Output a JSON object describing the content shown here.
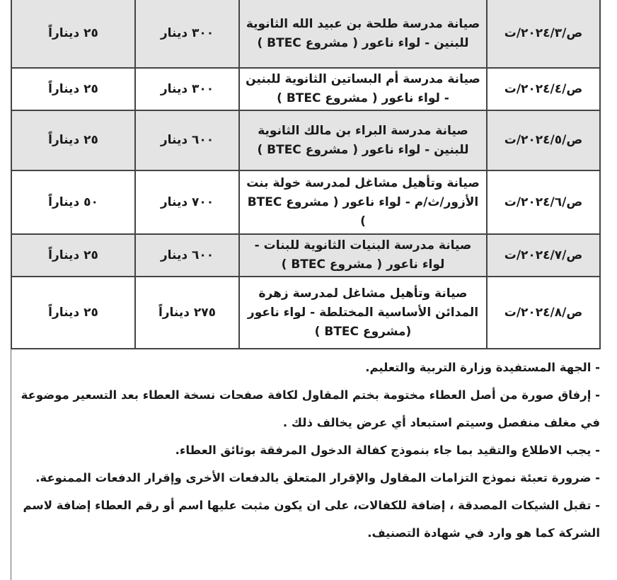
{
  "table": {
    "rows": [
      {
        "number": "ت/٢٠٢٤/٣/ص",
        "description": "صيانة مدرسة طلحة بن عبيد الله الثانوية للبنين - لواء ناعور ( مشروع BTEC )",
        "price": "٣٠٠ دينار",
        "fee": "٢٥ ديناراً",
        "shaded": true
      },
      {
        "number": "ت/٢٠٢٤/٤/ص",
        "description": "صيانة مدرسة أم البساتين الثانوية للبنين - لواء ناعور ( مشروع BTEC )",
        "price": "٣٠٠ دينار",
        "fee": "٢٥ ديناراً",
        "shaded": false
      },
      {
        "number": "ت/٢٠٢٤/٥/ص",
        "description": "صيانة مدرسة البراء بن مالك الثانوية للبنين - لواء ناعور ( مشروع BTEC )",
        "price": "٦٠٠ دينار",
        "fee": "٢٥ ديناراً",
        "shaded": true
      },
      {
        "number": "ت/٢٠٢٤/٦/ص",
        "description": "صيانة وتأهيل مشاغل لمدرسة خولة بنت الأزور/ث/م - لواء ناعور ( مشروع BTEC )",
        "price": "٧٠٠ دينار",
        "fee": "٥٠ ديناراً",
        "shaded": false
      },
      {
        "number": "ت/٢٠٢٤/٧/ص",
        "description": "صيانة مدرسة البنيات الثانوية للبنات - لواء ناعور ( مشروع BTEC )",
        "price": "٦٠٠ دينار",
        "fee": "٢٥ ديناراً",
        "shaded": true
      },
      {
        "number": "ت/٢٠٢٤/٨/ص",
        "description": "صيانة وتأهيل مشاغل لمدرسة زهرة المدائن الأساسية المختلطة - لواء ناعور (مشروع BTEC )",
        "price": "٢٧٥ ديناراً",
        "fee": "٢٥ ديناراً",
        "shaded": false
      }
    ]
  },
  "notes": [
    "- الجهة المستفيدة وزارة التربية والتعليم.",
    "- إرفاق صورة من أصل العطاء مختومة بختم المقاول لكافة صفحات نسخة العطاء بعد التسعير موضوعة في مغلف منفصل وسيتم استبعاد أي عرض يخالف ذلك .",
    "- يجب الاطلاع والتقيد بما جاء بنموذج كفالة الدخول المرفقة بوثائق العطاء.",
    "- ضرورة تعبئة نموذج التزامات المقاول والإقرار المتعلق بالدفعات الأخرى وإقرار الدفعات الممنوعة.",
    "- تقبل الشيكات المصدقة ، إضافة للكفالات، على ان يكون مثبت عليها اسم أو رقم العطاء إضافة لاسم الشركة كما هو وارد في شهادة التصنيف."
  ]
}
